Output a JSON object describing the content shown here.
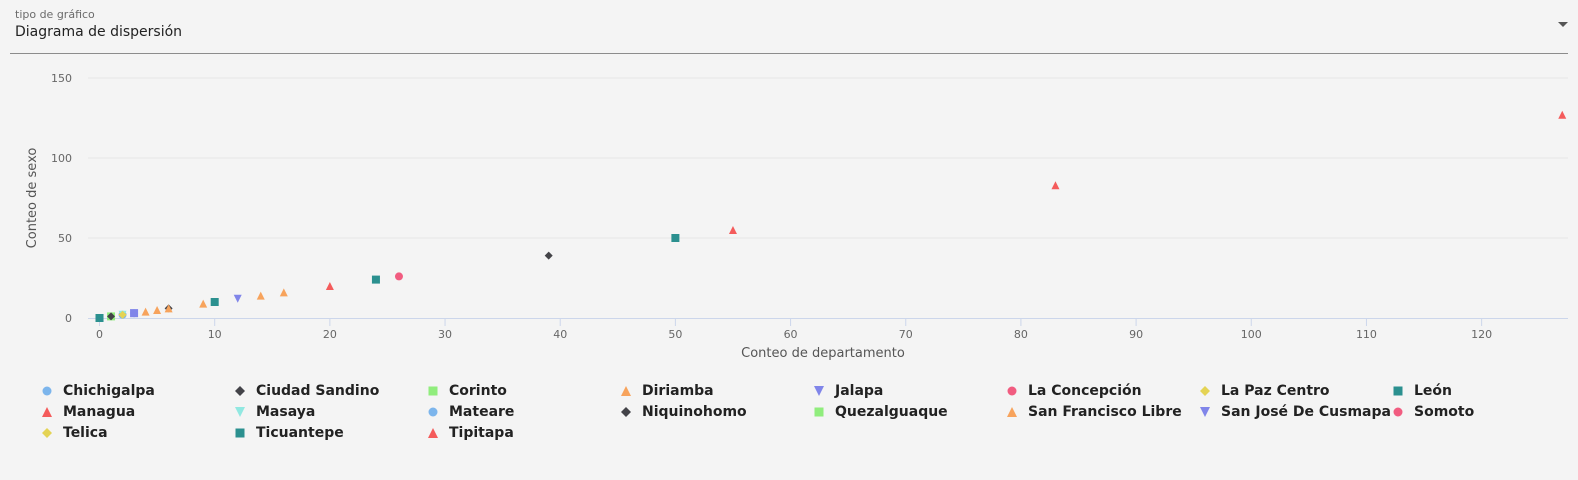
{
  "select": {
    "label": "tipo de gráfico",
    "value": "Diagrama de dispersión"
  },
  "chart_data": {
    "type": "scatter",
    "xlabel": "Conteo de departamento",
    "ylabel": "Conteo de sexo",
    "xlim": [
      -1,
      127.5
    ],
    "ylim": [
      0,
      150
    ],
    "xticks": [
      0,
      10,
      20,
      30,
      40,
      50,
      60,
      70,
      80,
      90,
      100,
      110,
      120
    ],
    "yticks": [
      0,
      50,
      100,
      150
    ],
    "grid": true,
    "legend_position": "bottom",
    "series": [
      {
        "name": "Chichigalpa",
        "color": "#7cb5ec",
        "symbol": "circle",
        "points": [
          [
            2,
            2
          ]
        ]
      },
      {
        "name": "Ciudad Sandino",
        "color": "#434348",
        "symbol": "diamond",
        "points": [
          [
            6,
            6
          ]
        ]
      },
      {
        "name": "Corinto",
        "color": "#90ed7d",
        "symbol": "square",
        "points": [
          [
            1,
            1
          ]
        ]
      },
      {
        "name": "Diriamba",
        "color": "#f7a35c",
        "symbol": "triangle",
        "points": [
          [
            14,
            14
          ]
        ]
      },
      {
        "name": "Jalapa",
        "color": "#8085e9",
        "symbol": "triangle-down",
        "points": [
          [
            12,
            12
          ]
        ]
      },
      {
        "name": "La Concepción",
        "color": "#f15c80",
        "symbol": "circle",
        "points": [
          [
            26,
            26
          ]
        ]
      },
      {
        "name": "La Paz Centro",
        "color": "#e4d354",
        "symbol": "diamond",
        "points": [
          [
            2,
            2
          ]
        ]
      },
      {
        "name": "León",
        "color": "#2b908f",
        "symbol": "square",
        "points": [
          [
            50,
            50
          ]
        ]
      },
      {
        "name": "Managua",
        "color": "#f45b5b",
        "symbol": "triangle",
        "points": [
          [
            127,
            127
          ]
        ]
      },
      {
        "name": "Masaya",
        "color": "#91e8e1",
        "symbol": "triangle-down",
        "points": [
          [
            2,
            2
          ]
        ]
      },
      {
        "name": "Mateare",
        "color": "#7cb5ec",
        "symbol": "circle",
        "points": [
          [
            3,
            3
          ]
        ]
      },
      {
        "name": "Niquinohomo",
        "color": "#434348",
        "symbol": "diamond",
        "points": [
          [
            39,
            39
          ]
        ]
      },
      {
        "name": "Quezalguaque",
        "color": "#90ed7d",
        "symbol": "square",
        "points": [
          [
            0,
            0
          ]
        ]
      },
      {
        "name": "San Francisco Libre",
        "color": "#f7a35c",
        "symbol": "triangle",
        "points": [
          [
            16,
            16
          ]
        ]
      },
      {
        "name": "San José De Cusmapa",
        "color": "#8085e9",
        "symbol": "triangle-down",
        "points": [
          [
            3,
            3
          ]
        ]
      },
      {
        "name": "Somoto",
        "color": "#f15c80",
        "symbol": "circle",
        "points": [
          [
            0,
            0
          ]
        ]
      },
      {
        "name": "Telica",
        "color": "#e4d354",
        "symbol": "diamond",
        "points": [
          [
            2,
            2
          ]
        ]
      },
      {
        "name": "Ticuantepe",
        "color": "#2b908f",
        "symbol": "square",
        "points": [
          [
            24,
            24
          ]
        ]
      },
      {
        "name": "Tipitapa",
        "color": "#f45b5b",
        "symbol": "triangle",
        "points": [
          [
            83,
            83
          ]
        ]
      },
      {
        "name": "",
        "color": "#f45b5b",
        "symbol": "triangle",
        "points": [
          [
            55,
            55
          ]
        ]
      },
      {
        "name": "",
        "color": "#f45b5b",
        "symbol": "triangle",
        "points": [
          [
            20,
            20
          ]
        ]
      },
      {
        "name": "",
        "color": "#f7a35c",
        "symbol": "triangle",
        "points": [
          [
            4,
            4
          ],
          [
            5,
            5
          ],
          [
            6,
            6
          ],
          [
            9,
            9
          ]
        ]
      },
      {
        "name": "",
        "color": "#2b908f",
        "symbol": "square",
        "points": [
          [
            10,
            10
          ]
        ]
      },
      {
        "name": "",
        "color": "#434348",
        "symbol": "diamond",
        "points": [
          [
            1,
            1
          ]
        ]
      },
      {
        "name": "",
        "color": "#8085e9",
        "symbol": "square",
        "points": [
          [
            3,
            3
          ]
        ]
      },
      {
        "name": "",
        "color": "#2b908f",
        "symbol": "square",
        "points": [
          [
            0,
            0
          ]
        ]
      }
    ]
  }
}
